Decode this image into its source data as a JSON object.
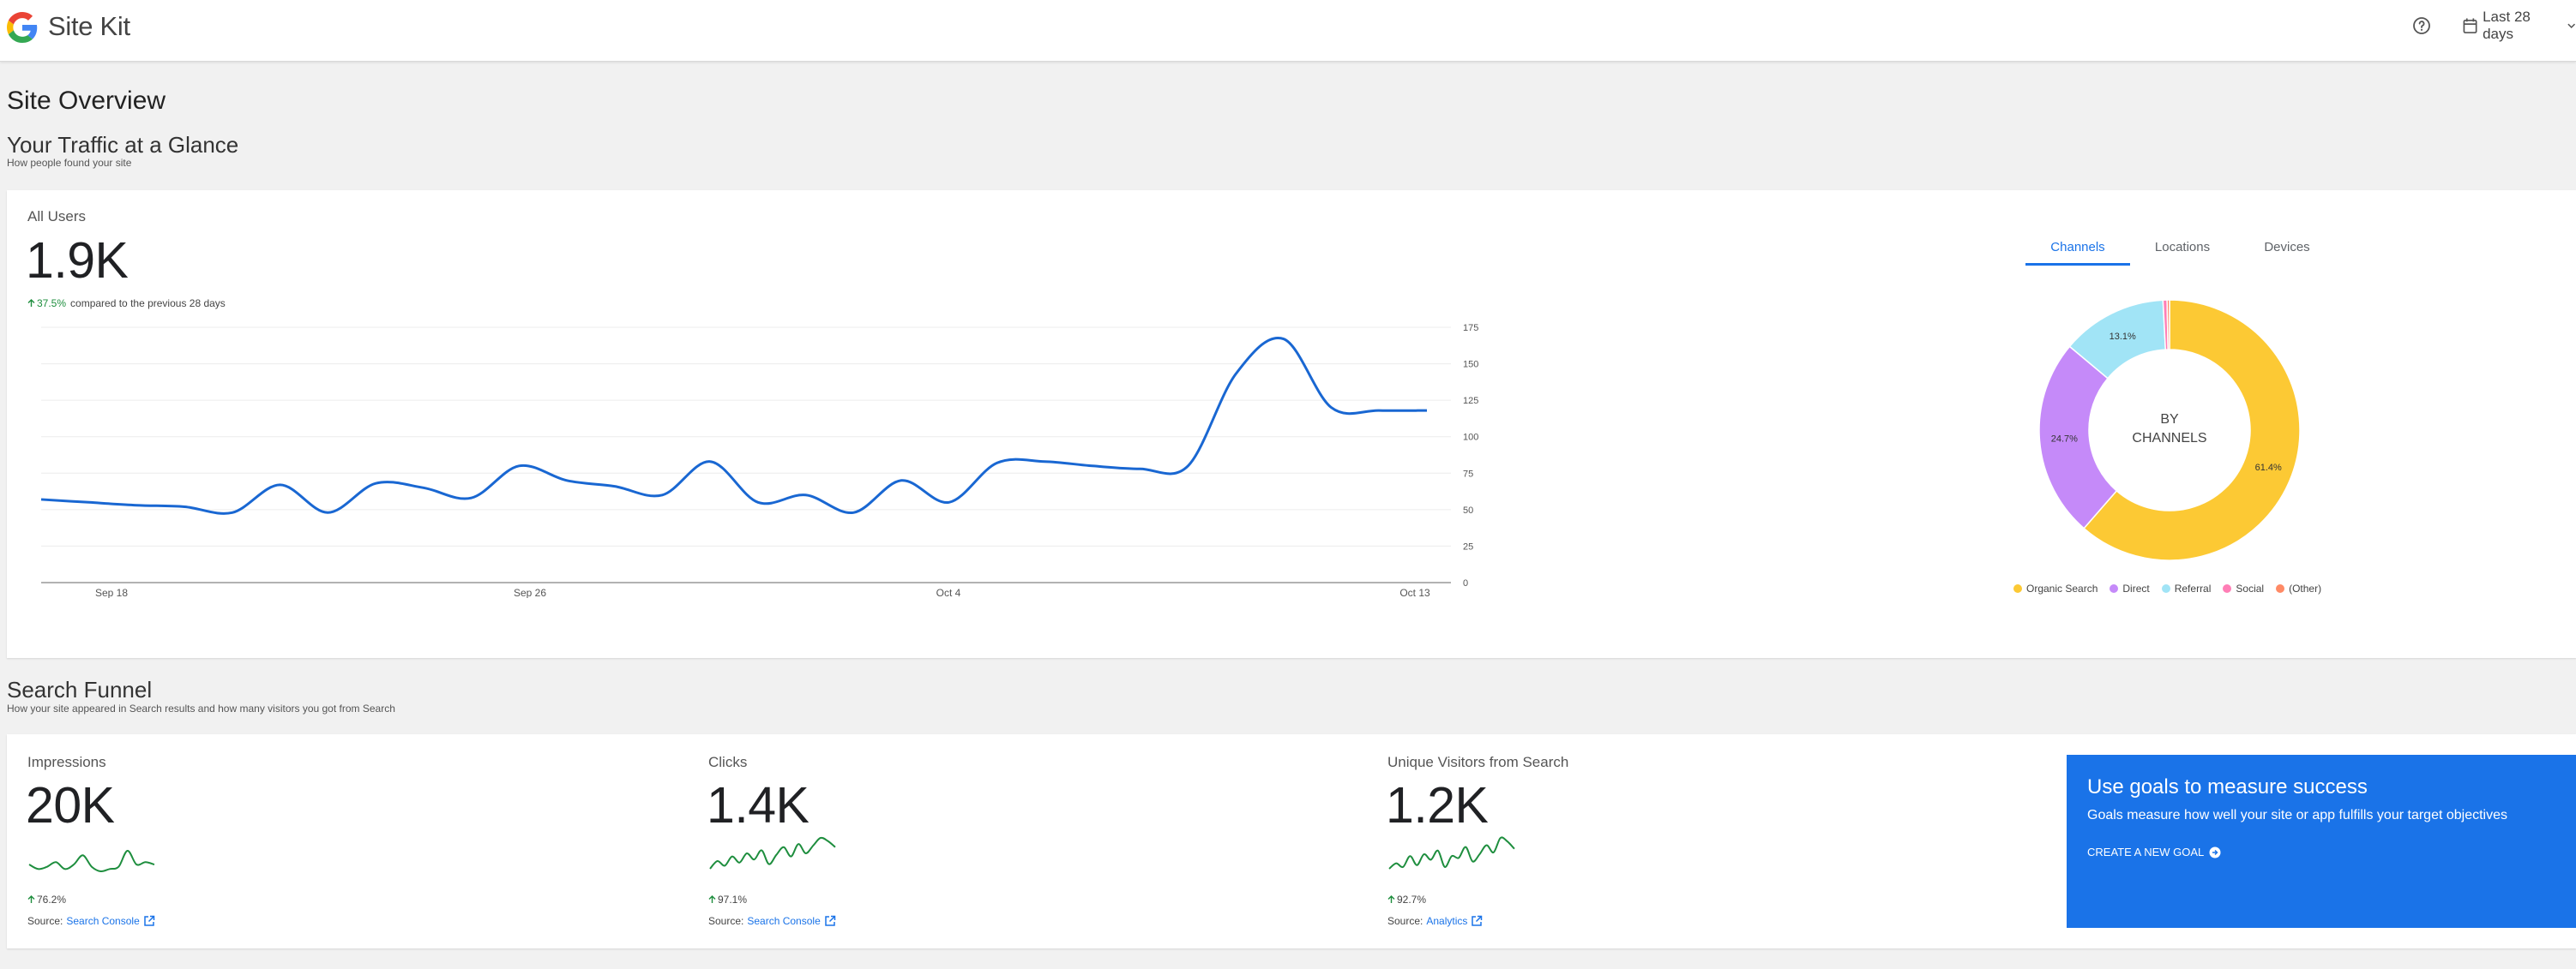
{
  "header": {
    "brand": "Site Kit",
    "date_range": "Last 28 days",
    "icons": {
      "logo": "google-g-logo",
      "help": "help-icon",
      "calendar": "calendar-icon",
      "chevron": "chevron-down-icon"
    }
  },
  "page_title": "Site Overview",
  "traffic": {
    "title": "Your Traffic at a Glance",
    "subtitle": "How people found your site",
    "all_users_label": "All Users",
    "all_users_value": "1.9K",
    "change": "37.5%",
    "change_text": "compared to the previous 28 days",
    "tabs": [
      "Channels",
      "Locations",
      "Devices"
    ],
    "active_tab": "Channels",
    "donut_center": [
      "BY",
      "CHANNELS"
    ]
  },
  "chart_data": [
    {
      "type": "line",
      "x_ticks": [
        "Sep 18",
        "Sep 26",
        "Oct 4",
        "Oct 13"
      ],
      "y_ticks": [
        "175",
        "150",
        "125",
        "100",
        "75",
        "50",
        "25",
        "0"
      ],
      "ylim": [
        0,
        175
      ],
      "grid": true,
      "series": [
        {
          "color": "#1967d2",
          "values": [
            57,
            55,
            53,
            52,
            48,
            67,
            48,
            68,
            65,
            58,
            80,
            70,
            66,
            60,
            83,
            55,
            60,
            48,
            70,
            55,
            82,
            83,
            80,
            78,
            80,
            143,
            167,
            120,
            118,
            118
          ]
        }
      ]
    },
    {
      "type": "pie",
      "labels": [
        "Organic Search",
        "Direct",
        "Referral",
        "Social",
        "(Other)"
      ],
      "values": [
        61.4,
        24.7,
        13.1,
        0.5,
        0.3
      ],
      "data_labels": [
        "61.4%",
        "24.7%",
        "13.1%",
        "",
        ""
      ],
      "colors": [
        "#fcc934",
        "#c58af9",
        "#a1e4f6",
        "#ff7eb6",
        "#ff8a65"
      ],
      "legend": "bottom"
    },
    {
      "type": "line",
      "series": [
        {
          "color": "#1e8e3e",
          "values": [
            8,
            6,
            7,
            9,
            6,
            8,
            12,
            7,
            5,
            6,
            7,
            14,
            8,
            9,
            8
          ]
        }
      ]
    },
    {
      "type": "line",
      "series": [
        {
          "color": "#1e8e3e",
          "values": [
            4,
            9,
            6,
            12,
            8,
            14,
            10,
            16,
            7,
            13,
            18,
            12,
            20,
            14,
            19,
            24,
            22,
            18
          ]
        }
      ]
    },
    {
      "type": "line",
      "series": [
        {
          "color": "#1e8e3e",
          "values": [
            5,
            8,
            6,
            12,
            7,
            13,
            10,
            15,
            6,
            12,
            11,
            17,
            9,
            13,
            18,
            14,
            22,
            20,
            16
          ]
        }
      ]
    }
  ],
  "funnel": {
    "title": "Search Funnel",
    "subtitle": "How your site appeared in Search results and how many visitors you got from Search",
    "metrics": [
      {
        "label": "Impressions",
        "value": "20K",
        "change": "76.2%",
        "source_prefix": "Source:",
        "source": "Search Console"
      },
      {
        "label": "Clicks",
        "value": "1.4K",
        "change": "97.1%",
        "source_prefix": "Source:",
        "source": "Search Console"
      },
      {
        "label": "Unique Visitors from Search",
        "value": "1.2K",
        "change": "92.7%",
        "source_prefix": "Source:",
        "source": "Analytics"
      }
    ]
  },
  "goals": {
    "title": "Use goals to measure success",
    "description": "Goals measure how well your site or app fulfills your target objectives",
    "cta": "CREATE A NEW GOAL"
  }
}
